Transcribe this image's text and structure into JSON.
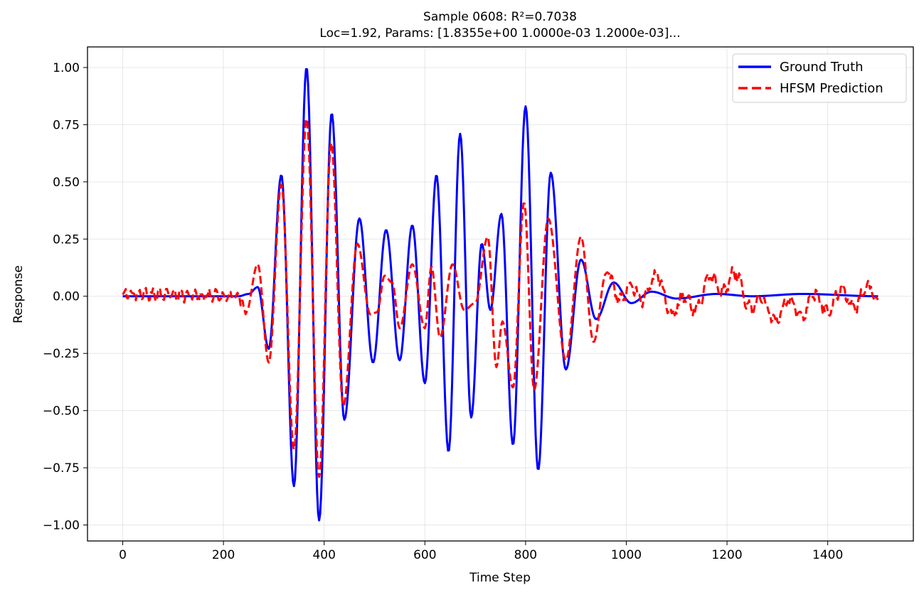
{
  "chart_data": {
    "type": "line",
    "title": "Sample 0608: R²=0.7038",
    "subtitle": "Loc=1.92, Params: [1.8355e+00 1.0000e-03 1.2000e-03]...",
    "xlabel": "Time Step",
    "ylabel": "Response",
    "xlim": [
      -70,
      1570
    ],
    "ylim": [
      -1.07,
      1.09
    ],
    "xticks": [
      0,
      200,
      400,
      600,
      800,
      1000,
      1200,
      1400
    ],
    "xtick_labels": [
      "0",
      "200",
      "400",
      "600",
      "800",
      "1000",
      "1200",
      "1400"
    ],
    "yticks": [
      -1.0,
      -0.75,
      -0.5,
      -0.25,
      0.0,
      0.25,
      0.5,
      0.75,
      1.0
    ],
    "ytick_labels": [
      "−1.00",
      "−0.75",
      "−0.50",
      "−0.25",
      "0.00",
      "0.25",
      "0.50",
      "0.75",
      "1.00"
    ],
    "grid": true,
    "legend_position": "top-right",
    "series": [
      {
        "name": "Ground Truth",
        "color": "#0000ff",
        "style": "solid",
        "points": [
          [
            0,
            0.0
          ],
          [
            230,
            0.0
          ],
          [
            250,
            0.01
          ],
          [
            268,
            0.04
          ],
          [
            290,
            -0.23
          ],
          [
            315,
            0.53
          ],
          [
            340,
            -0.83
          ],
          [
            365,
            1.0
          ],
          [
            390,
            -0.98
          ],
          [
            415,
            0.8
          ],
          [
            440,
            -0.54
          ],
          [
            470,
            0.34
          ],
          [
            497,
            -0.29
          ],
          [
            523,
            0.29
          ],
          [
            550,
            -0.28
          ],
          [
            575,
            0.31
          ],
          [
            600,
            -0.38
          ],
          [
            623,
            0.53
          ],
          [
            647,
            -0.68
          ],
          [
            670,
            0.71
          ],
          [
            692,
            -0.53
          ],
          [
            713,
            0.23
          ],
          [
            730,
            -0.06
          ],
          [
            752,
            0.36
          ],
          [
            775,
            -0.65
          ],
          [
            800,
            0.83
          ],
          [
            825,
            -0.76
          ],
          [
            850,
            0.54
          ],
          [
            880,
            -0.32
          ],
          [
            910,
            0.16
          ],
          [
            940,
            -0.1
          ],
          [
            975,
            0.06
          ],
          [
            1010,
            -0.03
          ],
          [
            1050,
            0.02
          ],
          [
            1100,
            -0.01
          ],
          [
            1180,
            0.01
          ],
          [
            1250,
            0.0
          ],
          [
            1350,
            0.01
          ],
          [
            1500,
            0.0
          ]
        ]
      },
      {
        "name": "HFSM Prediction",
        "color": "#ff0000",
        "style": "dashed",
        "noisy_until": 245,
        "noisy_after": 960,
        "points": [
          [
            0,
            0.01
          ],
          [
            230,
            0.0
          ],
          [
            245,
            -0.07
          ],
          [
            268,
            0.14
          ],
          [
            290,
            -0.29
          ],
          [
            315,
            0.49
          ],
          [
            340,
            -0.67
          ],
          [
            365,
            0.78
          ],
          [
            390,
            -0.79
          ],
          [
            414,
            0.67
          ],
          [
            438,
            -0.48
          ],
          [
            466,
            0.23
          ],
          [
            492,
            -0.08
          ],
          [
            505,
            -0.07
          ],
          [
            520,
            0.09
          ],
          [
            535,
            0.06
          ],
          [
            550,
            -0.14
          ],
          [
            575,
            0.14
          ],
          [
            600,
            -0.14
          ],
          [
            613,
            0.13
          ],
          [
            630,
            -0.18
          ],
          [
            655,
            0.14
          ],
          [
            678,
            -0.06
          ],
          [
            700,
            -0.03
          ],
          [
            725,
            0.26
          ],
          [
            742,
            -0.31
          ],
          [
            754,
            -0.11
          ],
          [
            775,
            -0.4
          ],
          [
            797,
            0.41
          ],
          [
            817,
            -0.41
          ],
          [
            845,
            0.34
          ],
          [
            880,
            -0.28
          ],
          [
            910,
            0.26
          ],
          [
            935,
            -0.2
          ],
          [
            960,
            0.1
          ],
          [
            1000,
            0.0
          ],
          [
            1060,
            0.05
          ],
          [
            1100,
            -0.05
          ],
          [
            1200,
            0.07
          ],
          [
            1280,
            -0.06
          ],
          [
            1500,
            0.0
          ]
        ]
      }
    ]
  }
}
